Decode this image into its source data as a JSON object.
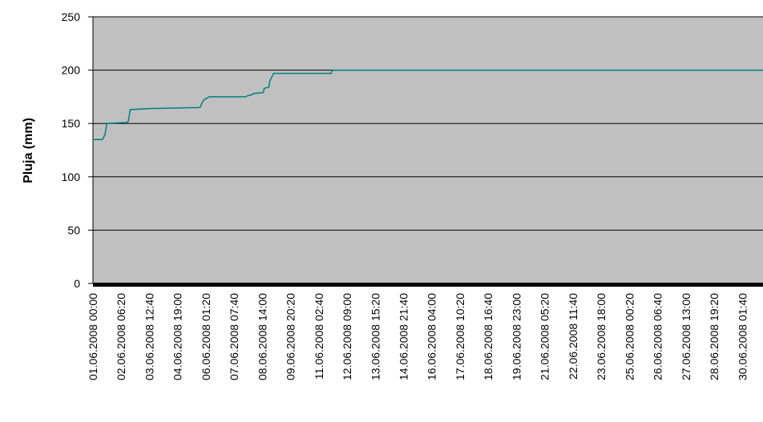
{
  "chart_data": {
    "type": "line",
    "title": "",
    "xlabel": "",
    "ylabel": "Pluja (mm)",
    "ylim": [
      0,
      250
    ],
    "yticks": [
      0,
      50,
      100,
      150,
      200,
      250
    ],
    "grid": true,
    "legend": "none",
    "colors": {
      "plot_background": "#c0c0c0",
      "line": "#008080",
      "gridline": "#000000"
    },
    "x_tick_labels": [
      "01.06.2008 00:00",
      "02.06.2008 06:20",
      "03.06.2008 12:40",
      "04.06.2008 19:00",
      "06.06.2008 01:20",
      "07.06.2008 07:40",
      "08.06.2008 14:00",
      "09.06.2008 20:20",
      "11.06.2008 02:40",
      "12.06.2008 09:00",
      "13.06.2008 15:20",
      "14.06.2008 21:40",
      "16.06.2008 04:00",
      "17.06.2008 10:20",
      "18.06.2008 16:40",
      "19.06.2008 23:00",
      "21.06.2008 05:20",
      "22.06.2008 11:40",
      "23.06.2008 18:00",
      "25.06.2008 00:20",
      "26.06.2008 06:40",
      "27.06.2008 13:00",
      "28.06.2008 19:20",
      "30.06.2008 01:40"
    ],
    "series": [
      {
        "x": [
          "01.06.2008 00:00",
          "01.06.2008 10:00",
          "01.06.2008 11:30",
          "01.06.2008 13:00",
          "01.06.2008 15:00",
          "02.06.2008 12:00",
          "02.06.2008 14:00",
          "02.06.2008 16:00",
          "03.06.2008 12:00",
          "05.06.2008 19:00",
          "05.06.2008 21:00",
          "05.06.2008 23:00",
          "06.06.2008 03:00",
          "06.06.2008 05:00",
          "07.06.2008 20:00",
          "07.06.2008 22:00",
          "08.06.2008 03:00",
          "08.06.2008 04:00",
          "08.06.2008 15:00",
          "08.06.2008 16:00",
          "08.06.2008 21:00",
          "08.06.2008 22:00",
          "09.06.2008 01:00",
          "09.06.2008 02:00",
          "11.06.2008 16:00",
          "11.06.2008 17:00",
          "30.06.2008 23:50"
        ],
        "y": [
          135,
          135,
          137,
          140,
          150,
          151,
          152,
          163,
          164,
          165,
          169,
          172,
          174,
          175,
          175,
          176,
          177,
          178,
          179,
          183,
          184,
          190,
          195,
          197,
          197,
          200,
          200
        ]
      }
    ]
  }
}
